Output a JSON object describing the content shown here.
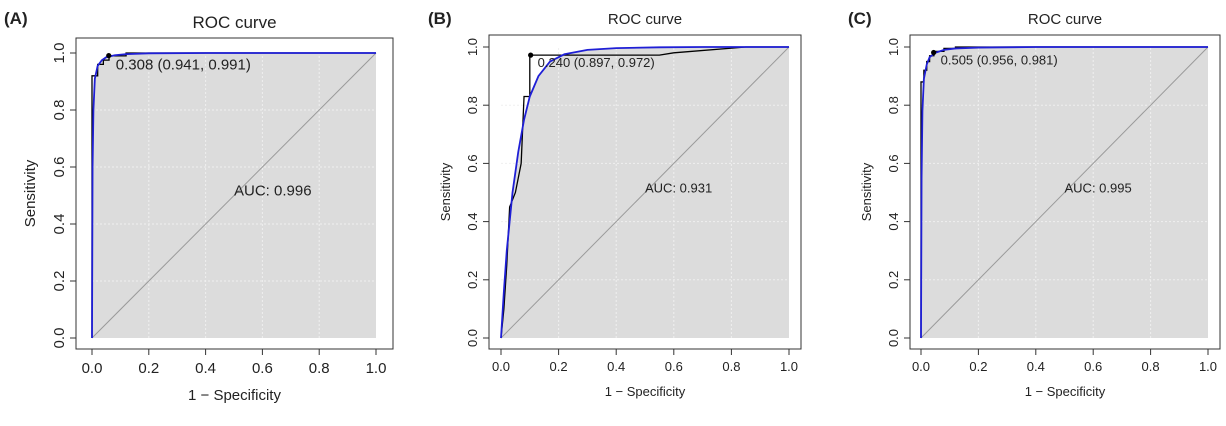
{
  "figure": {
    "panels": [
      "(A)",
      "(B)",
      "(C)"
    ]
  },
  "chart_data": [
    {
      "type": "line",
      "panel": "(A)",
      "title": "ROC curve",
      "xlabel": "1 − Specificity",
      "ylabel": "Sensitivity",
      "xlim": [
        0,
        1
      ],
      "ylim": [
        0,
        1
      ],
      "xticks": [
        "0.0",
        "0.2",
        "0.4",
        "0.6",
        "0.8",
        "1.0"
      ],
      "yticks": [
        "0.0",
        "0.2",
        "0.4",
        "0.6",
        "0.8",
        "1.0"
      ],
      "grid": true,
      "auc_label": "AUC: 0.996",
      "threshold_label": "0.308 (0.941, 0.991)",
      "threshold_point": {
        "x": 0.059,
        "y": 0.991
      },
      "colors": {
        "empirical": "#000000",
        "smoothed": "#1f1fd6",
        "auc_fill": "#dcdcdc",
        "diagonal": "#9a9a9a"
      },
      "series": [
        {
          "x": [
            0,
            0,
            0.02,
            0.02,
            0.04,
            0.04,
            0.06,
            0.06,
            0.12,
            0.12,
            1
          ],
          "y": [
            0,
            0.92,
            0.92,
            0.96,
            0.96,
            0.975,
            0.975,
            0.99,
            0.99,
            1,
            1
          ]
        },
        {
          "x": [
            0,
            0.002,
            0.005,
            0.01,
            0.02,
            0.035,
            0.05,
            0.08,
            0.12,
            0.2,
            0.4,
            1
          ],
          "y": [
            0,
            0.6,
            0.8,
            0.91,
            0.955,
            0.975,
            0.985,
            0.992,
            0.996,
            0.999,
            1,
            1
          ]
        }
      ]
    },
    {
      "type": "line",
      "panel": "(B)",
      "title": "ROC curve",
      "xlabel": "1 − Specificity",
      "ylabel": "Sensitivity",
      "xlim": [
        0,
        1
      ],
      "ylim": [
        0,
        1
      ],
      "xticks": [
        "0.0",
        "0.2",
        "0.4",
        "0.6",
        "0.8",
        "1.0"
      ],
      "yticks": [
        "0.0",
        "0.2",
        "0.4",
        "0.6",
        "0.8",
        "1.0"
      ],
      "grid": true,
      "auc_label": "AUC: 0.931",
      "threshold_label": "0.240 (0.897, 0.972)",
      "threshold_point": {
        "x": 0.103,
        "y": 0.972
      },
      "colors": {
        "empirical": "#000000",
        "smoothed": "#1f1fd6",
        "auc_fill": "#dcdcdc",
        "diagonal": "#9a9a9a"
      },
      "series": [
        {
          "x": [
            0,
            0.01,
            0.02,
            0.03,
            0.05,
            0.07,
            0.08,
            0.1,
            0.1,
            0.55,
            0.6,
            0.85,
            1
          ],
          "y": [
            0,
            0.1,
            0.25,
            0.45,
            0.5,
            0.6,
            0.83,
            0.83,
            0.972,
            0.972,
            0.98,
            1,
            1
          ]
        },
        {
          "x": [
            0,
            0.01,
            0.02,
            0.04,
            0.06,
            0.08,
            0.1,
            0.13,
            0.17,
            0.22,
            0.3,
            0.4,
            0.55,
            0.7,
            1
          ],
          "y": [
            0,
            0.16,
            0.3,
            0.5,
            0.64,
            0.75,
            0.83,
            0.9,
            0.95,
            0.975,
            0.99,
            0.996,
            0.999,
            1,
            1
          ]
        }
      ]
    },
    {
      "type": "line",
      "panel": "(C)",
      "title": "ROC curve",
      "xlabel": "1 − Specificity",
      "ylabel": "Sensitivity",
      "xlim": [
        0,
        1
      ],
      "ylim": [
        0,
        1
      ],
      "xticks": [
        "0.0",
        "0.2",
        "0.4",
        "0.6",
        "0.8",
        "1.0"
      ],
      "yticks": [
        "0.0",
        "0.2",
        "0.4",
        "0.6",
        "0.8",
        "1.0"
      ],
      "grid": true,
      "auc_label": "AUC: 0.995",
      "threshold_label": "0.505 (0.956, 0.981)",
      "threshold_point": {
        "x": 0.044,
        "y": 0.981
      },
      "colors": {
        "empirical": "#000000",
        "smoothed": "#1f1fd6",
        "auc_fill": "#dcdcdc",
        "diagonal": "#9a9a9a"
      },
      "series": [
        {
          "x": [
            0,
            0,
            0.01,
            0.01,
            0.02,
            0.02,
            0.03,
            0.03,
            0.045,
            0.045,
            0.08,
            0.08,
            0.12,
            0.12,
            1
          ],
          "y": [
            0,
            0.88,
            0.88,
            0.92,
            0.92,
            0.95,
            0.95,
            0.97,
            0.97,
            0.985,
            0.985,
            0.995,
            0.995,
            1,
            1
          ]
        },
        {
          "x": [
            0,
            0.002,
            0.005,
            0.01,
            0.02,
            0.03,
            0.05,
            0.08,
            0.12,
            0.2,
            0.4,
            1
          ],
          "y": [
            0,
            0.55,
            0.78,
            0.89,
            0.94,
            0.965,
            0.98,
            0.99,
            0.995,
            0.998,
            1,
            1
          ]
        }
      ]
    }
  ]
}
